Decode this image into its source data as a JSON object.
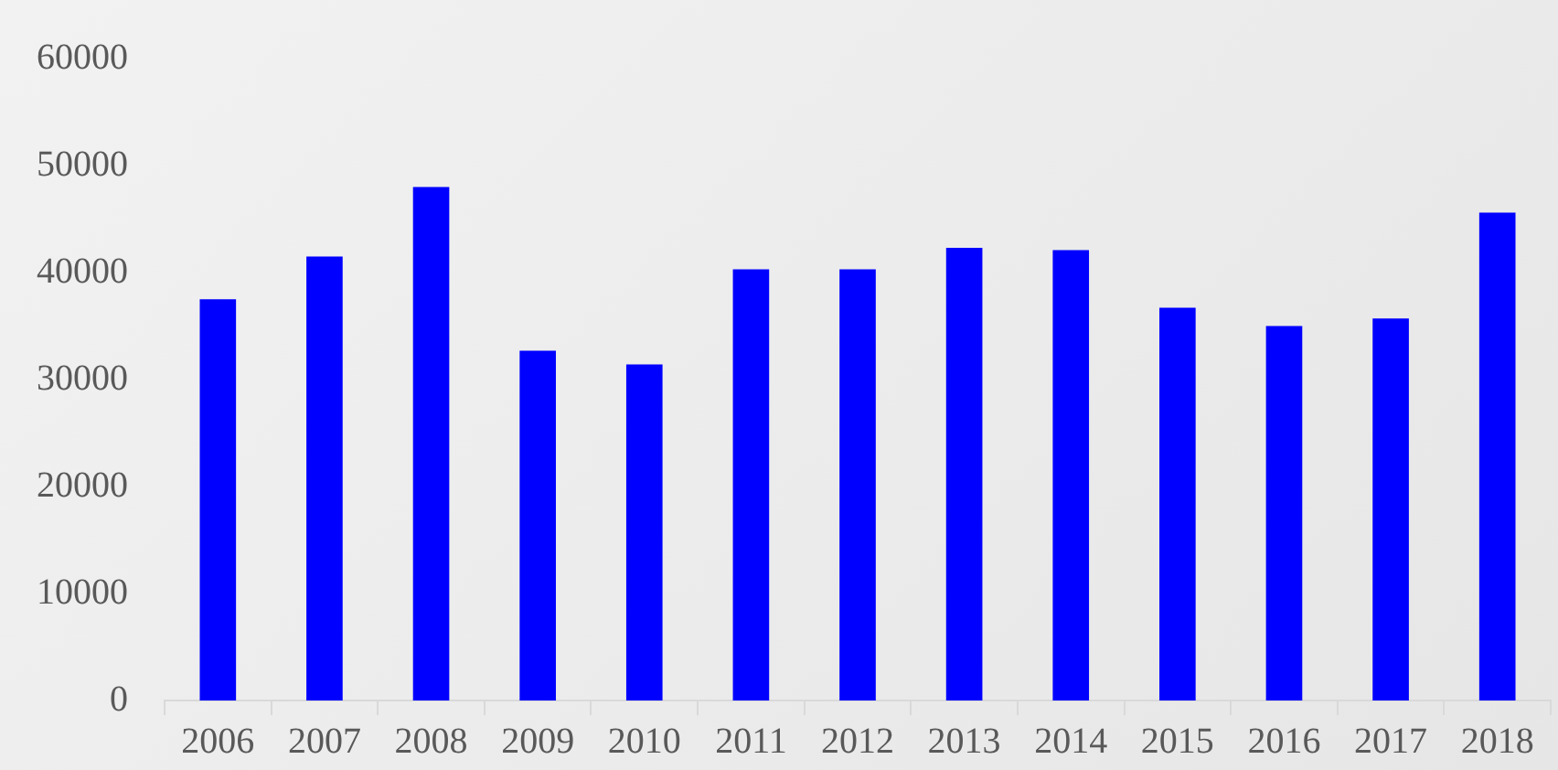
{
  "chart_data": {
    "type": "bar",
    "categories": [
      "2006",
      "2007",
      "2008",
      "2009",
      "2010",
      "2011",
      "2012",
      "2013",
      "2014",
      "2015",
      "2016",
      "2017",
      "2018"
    ],
    "values": [
      37500,
      41500,
      48000,
      32700,
      31400,
      40300,
      40300,
      42300,
      42100,
      36700,
      35000,
      35700,
      45600
    ],
    "color": "#0000ff",
    "ylim": [
      0,
      60000
    ],
    "yticks": [
      0,
      10000,
      20000,
      30000,
      40000,
      50000,
      60000
    ],
    "grid": false,
    "legend": false
  }
}
